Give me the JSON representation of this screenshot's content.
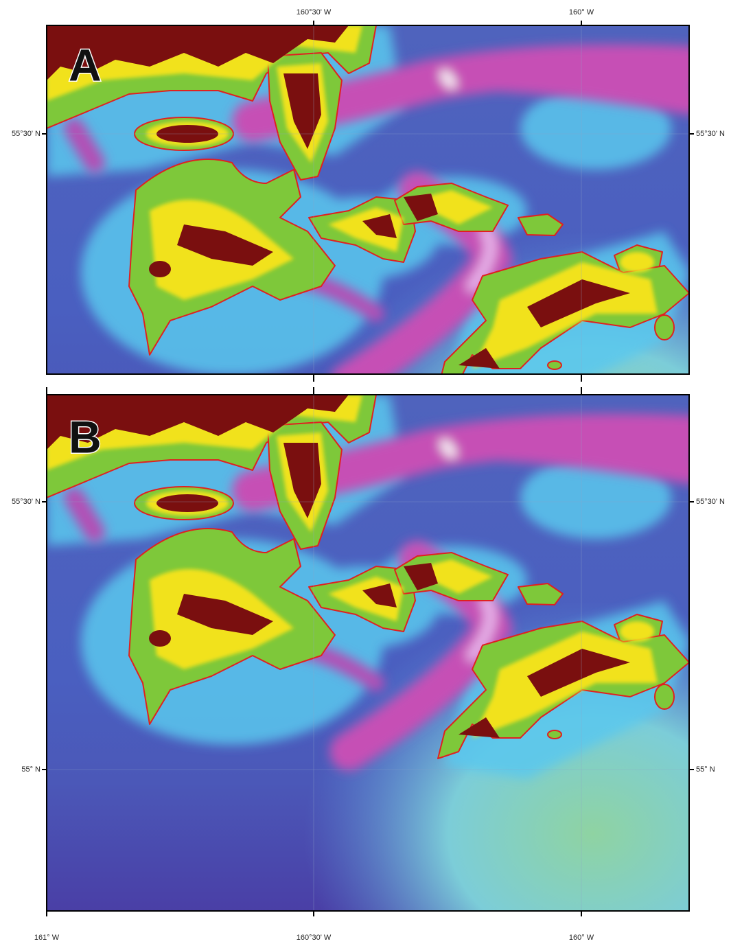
{
  "panels": [
    {
      "label": "A",
      "lon_labels": [
        "160°30' W",
        "160° W"
      ],
      "lat_labels": [
        "55°30' N"
      ]
    },
    {
      "label": "B",
      "lon_labels": [
        "161° W",
        "160°30' W",
        "160° W"
      ],
      "lat_labels": [
        "55°30' N",
        "55° N"
      ]
    }
  ]
}
